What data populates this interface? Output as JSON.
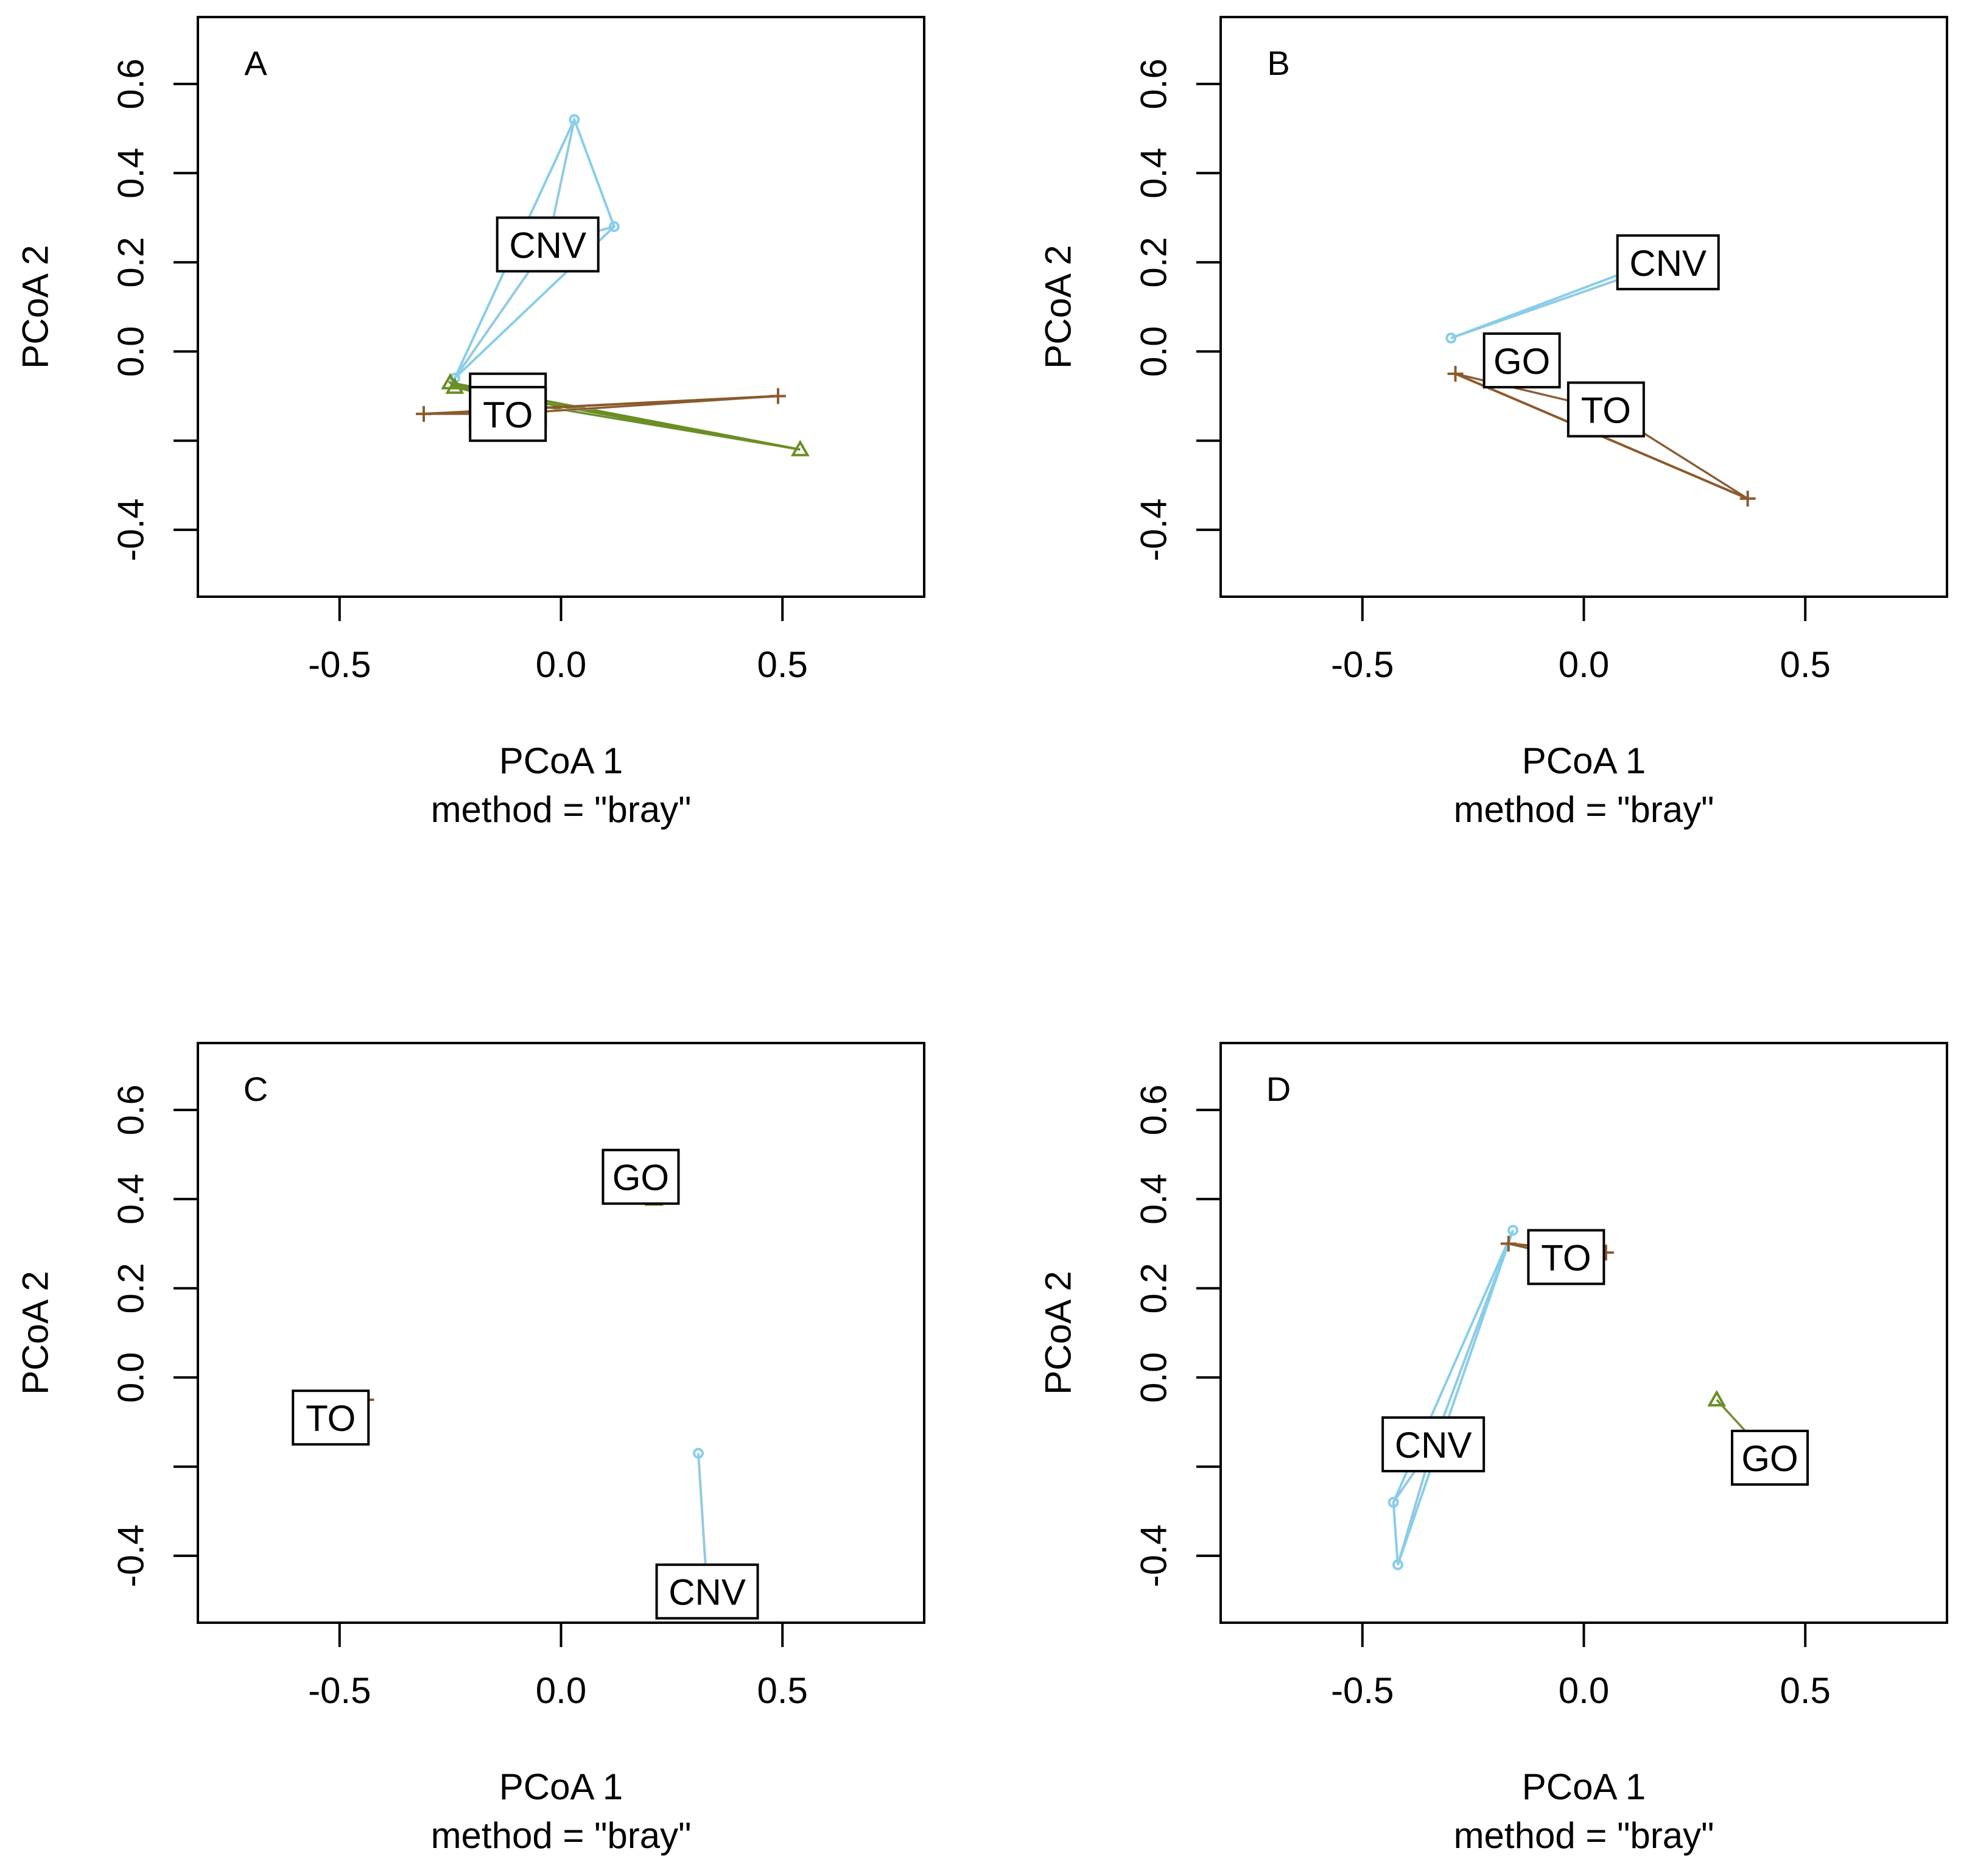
{
  "colors": {
    "CNV": "#87CEEB",
    "GO": "#6B8E23",
    "TO": "#8B5A2B",
    "spider_mean": "#BEBEBE",
    "axis": "#000000"
  },
  "chart_data": [
    {
      "type": "scatter",
      "panel": "A",
      "xlabel": "PCoA 1",
      "sublabel": "method = \"bray\"",
      "ylabel": "PCoA 2",
      "xlim": [
        -0.82,
        0.82
      ],
      "ylim": [
        -0.55,
        0.75
      ],
      "xticks": [
        -0.5,
        0.0,
        0.5
      ],
      "xtick_labels": [
        "-0.5",
        "0.0",
        "0.5"
      ],
      "yticks": [
        -0.4,
        -0.2,
        0.0,
        0.2,
        0.4,
        0.6
      ],
      "ytick_labels": [
        "-0.4",
        "",
        "0.0",
        "0.2",
        "0.4",
        "0.6"
      ],
      "groups": [
        {
          "name": "CNV",
          "label": "CNV",
          "marker": "circle",
          "centroid": [
            -0.03,
            0.24
          ],
          "points": [
            [
              0.03,
              0.52
            ],
            [
              0.12,
              0.28
            ],
            [
              -0.24,
              -0.06
            ]
          ]
        },
        {
          "name": "GO",
          "label": "GO",
          "marker": "triangle",
          "centroid": [
            -0.12,
            -0.11
          ],
          "points": [
            [
              -0.25,
              -0.07
            ],
            [
              -0.24,
              -0.08
            ],
            [
              0.54,
              -0.22
            ]
          ]
        },
        {
          "name": "TO",
          "label": "TO",
          "marker": "plus",
          "centroid": [
            -0.12,
            -0.14
          ],
          "points": [
            [
              -0.31,
              -0.14
            ],
            [
              0.49,
              -0.1
            ]
          ]
        }
      ]
    },
    {
      "type": "scatter",
      "panel": "B",
      "xlabel": "PCoA 1",
      "sublabel": "method = \"bray\"",
      "ylabel": "PCoA 2",
      "xlim": [
        -0.82,
        0.82
      ],
      "ylim": [
        -0.55,
        0.75
      ],
      "xticks": [
        -0.5,
        0.0,
        0.5
      ],
      "xtick_labels": [
        "-0.5",
        "0.0",
        "0.5"
      ],
      "yticks": [
        -0.4,
        -0.2,
        0.0,
        0.2,
        0.4,
        0.6
      ],
      "ytick_labels": [
        "-0.4",
        "",
        "0.0",
        "0.2",
        "0.4",
        "0.6"
      ],
      "groups": [
        {
          "name": "CNV",
          "label": "CNV",
          "marker": "circle",
          "centroid": [
            0.19,
            0.2
          ],
          "points": [
            [
              -0.3,
              0.03
            ],
            [
              0.1,
              0.18
            ]
          ]
        },
        {
          "name": "GO",
          "label": "GO",
          "marker": "triangle",
          "centroid": [
            -0.14,
            -0.02
          ],
          "points": []
        },
        {
          "name": "TO",
          "label": "TO",
          "marker": "plus",
          "centroid": [
            0.05,
            -0.13
          ],
          "points": [
            [
              -0.29,
              -0.05
            ],
            [
              0.37,
              -0.33
            ]
          ]
        }
      ]
    },
    {
      "type": "scatter",
      "panel": "C",
      "xlabel": "PCoA 1",
      "sublabel": "method = \"bray\"",
      "ylabel": "PCoA 2",
      "xlim": [
        -0.82,
        0.82
      ],
      "ylim": [
        -0.55,
        0.75
      ],
      "xticks": [
        -0.5,
        0.0,
        0.5
      ],
      "xtick_labels": [
        "-0.5",
        "0.0",
        "0.5"
      ],
      "yticks": [
        -0.4,
        -0.2,
        0.0,
        0.2,
        0.4,
        0.6
      ],
      "ytick_labels": [
        "-0.4",
        "",
        "0.0",
        "0.2",
        "0.4",
        "0.6"
      ],
      "groups": [
        {
          "name": "CNV",
          "label": "CNV",
          "marker": "circle",
          "centroid": [
            0.33,
            -0.48
          ],
          "points": [
            [
              0.31,
              -0.17
            ]
          ]
        },
        {
          "name": "GO",
          "label": "GO",
          "marker": "triangle",
          "centroid": [
            0.18,
            0.45
          ],
          "points": [
            [
              0.21,
              0.4
            ]
          ]
        },
        {
          "name": "TO",
          "label": "TO",
          "marker": "plus",
          "centroid": [
            -0.52,
            -0.09
          ],
          "points": [
            [
              -0.44,
              -0.05
            ]
          ]
        }
      ]
    },
    {
      "type": "scatter",
      "panel": "D",
      "xlabel": "PCoA 1",
      "sublabel": "method = \"bray\"",
      "ylabel": "PCoA 2",
      "xlim": [
        -0.82,
        0.82
      ],
      "ylim": [
        -0.55,
        0.75
      ],
      "xticks": [
        -0.5,
        0.0,
        0.5
      ],
      "xtick_labels": [
        "-0.5",
        "0.0",
        "0.5"
      ],
      "yticks": [
        -0.4,
        -0.2,
        0.0,
        0.2,
        0.4,
        0.6
      ],
      "ytick_labels": [
        "-0.4",
        "",
        "0.0",
        "0.2",
        "0.4",
        "0.6"
      ],
      "groups": [
        {
          "name": "CNV",
          "label": "CNV",
          "marker": "circle",
          "centroid": [
            -0.34,
            -0.15
          ],
          "points": [
            [
              -0.16,
              0.33
            ],
            [
              -0.43,
              -0.28
            ],
            [
              -0.42,
              -0.42
            ]
          ]
        },
        {
          "name": "GO",
          "label": "GO",
          "marker": "triangle",
          "centroid": [
            0.42,
            -0.18
          ],
          "points": [
            [
              0.3,
              -0.05
            ]
          ]
        },
        {
          "name": "TO",
          "label": "TO",
          "marker": "plus",
          "centroid": [
            -0.04,
            0.27
          ],
          "points": [
            [
              -0.17,
              0.3
            ],
            [
              0.05,
              0.28
            ]
          ]
        }
      ]
    }
  ]
}
